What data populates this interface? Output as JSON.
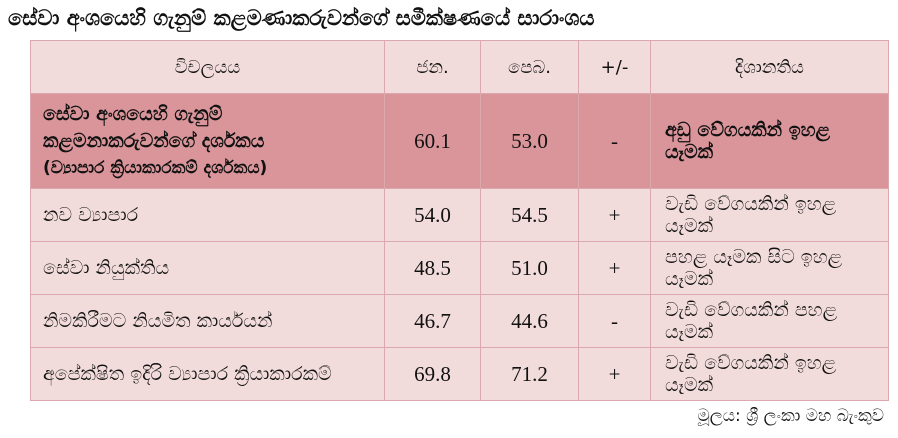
{
  "title": "සේවා අංශයෙහි ගැනුම් කළමණාකරුවන්ගේ සමීක්ෂණයේ සාරාංශය",
  "columns": {
    "category": "විචලයය",
    "jan": "ජන.",
    "feb": "පෙබ.",
    "change": "+/-",
    "direction": "දිශානතිය"
  },
  "summary_row": {
    "name_line1": "සේවා අංශයෙහි ගැනුම්",
    "name_line2": "කළමනාකරුවන්ගේ දර්ශකය",
    "name_line3": "(ව්‍යාපාර ක්‍රියාකාරකම් දර්ශකය)",
    "jan": "60.1",
    "feb": "53.0",
    "change": "-",
    "direction": "අඩු වේගයකින් ඉහළ යෑමක්"
  },
  "rows": [
    {
      "name": "නව ව්‍යාපාර",
      "jan": "54.0",
      "feb": "54.5",
      "change": "+",
      "direction": "වැඩි වේගයකින් ඉහළ යෑමක්"
    },
    {
      "name": "සේවා නියුක්තිය",
      "jan": "48.5",
      "feb": "51.0",
      "change": "+",
      "direction": "පහළ යෑමක සිට ඉහළ යෑමක්"
    },
    {
      "name": "නිමකිරීමට නියමිත කාර්යයන්",
      "jan": "46.7",
      "feb": "44.6",
      "change": "-",
      "direction": "වැඩි වේගයකින් පහළ යෑමක්"
    },
    {
      "name": "අපේක්ෂිත ඉදිරි ව්‍යාපාර ක්‍රියාකාරකම්",
      "jan": "69.8",
      "feb": "71.2",
      "change": "+",
      "direction": "වැඩි වේගයකින් ඉහළ යෑමක්"
    }
  ],
  "source": "මූලය: ශ්‍රී ලංකා මහ බැංකුව"
}
